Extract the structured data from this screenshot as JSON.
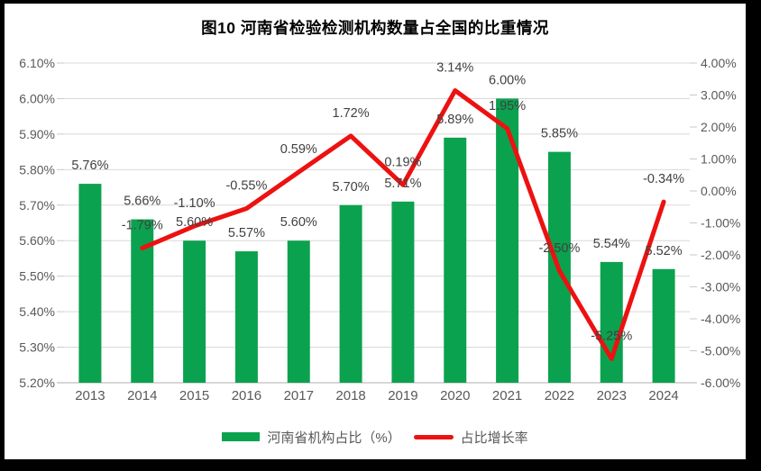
{
  "title": "图10  河南省检验检测机构数量占全国的比重情况",
  "colors": {
    "bar": "#0ba24f",
    "line": "#ed1111",
    "grid": "#d9d9d9",
    "axis_line": "#bfbfbf",
    "tick_mark": "#c9c9c9",
    "axis_text": "#595959",
    "data_label_text": "#404040",
    "title_text": "#000000",
    "frame_border": "#000000"
  },
  "chart_data": {
    "type": "bar+line combo",
    "title": "图10  河南省检验检测机构数量占全国的比重情况",
    "categories": [
      "2013",
      "2014",
      "2015",
      "2016",
      "2017",
      "2018",
      "2019",
      "2020",
      "2021",
      "2022",
      "2023",
      "2024"
    ],
    "series": [
      {
        "name": "河南省机构占比（%）",
        "type": "bar",
        "axis": "left",
        "color": "#0ba24f",
        "values": [
          5.76,
          5.66,
          5.6,
          5.57,
          5.6,
          5.7,
          5.71,
          5.89,
          6.0,
          5.85,
          5.54,
          5.52
        ],
        "labels": [
          "5.76%",
          "5.66%",
          "5.60%",
          "5.57%",
          "5.60%",
          "5.70%",
          "5.71%",
          "5.89%",
          "6.00%",
          "5.85%",
          "5.54%",
          "5.52%"
        ]
      },
      {
        "name": "占比增长率",
        "type": "line",
        "axis": "right",
        "color": "#ed1111",
        "values": [
          null,
          -1.79,
          -1.1,
          -0.55,
          0.59,
          1.72,
          0.19,
          3.14,
          1.95,
          -2.5,
          -5.25,
          -0.34
        ],
        "labels": [
          null,
          "-1.79%",
          "-1.10%",
          "-0.55%",
          "0.59%",
          "1.72%",
          "0.19%",
          "3.14%",
          "1.95%",
          "-2.50%",
          "-5.25%",
          "-0.34%"
        ]
      }
    ],
    "left_axis": {
      "min": 5.2,
      "max": 6.1,
      "step": 0.1,
      "tick_labels": [
        "6.10%",
        "6.00%",
        "5.90%",
        "5.80%",
        "5.70%",
        "5.60%",
        "5.50%",
        "5.40%",
        "5.30%",
        "5.20%"
      ]
    },
    "right_axis": {
      "min": -6.0,
      "max": 4.0,
      "step": 1.0,
      "tick_labels": [
        "4.00%",
        "3.00%",
        "2.00%",
        "1.00%",
        "0.00%",
        "-1.00%",
        "-2.00%",
        "-3.00%",
        "-4.00%",
        "-5.00%",
        "-6.00%"
      ]
    },
    "grid": true,
    "legend_position": "bottom"
  },
  "legend": {
    "items": [
      {
        "label": "河南省机构占比（%）",
        "color": "#0ba24f",
        "swatch": "rect"
      },
      {
        "label": "占比增长率",
        "color": "#ed1111",
        "swatch": "line"
      }
    ]
  }
}
